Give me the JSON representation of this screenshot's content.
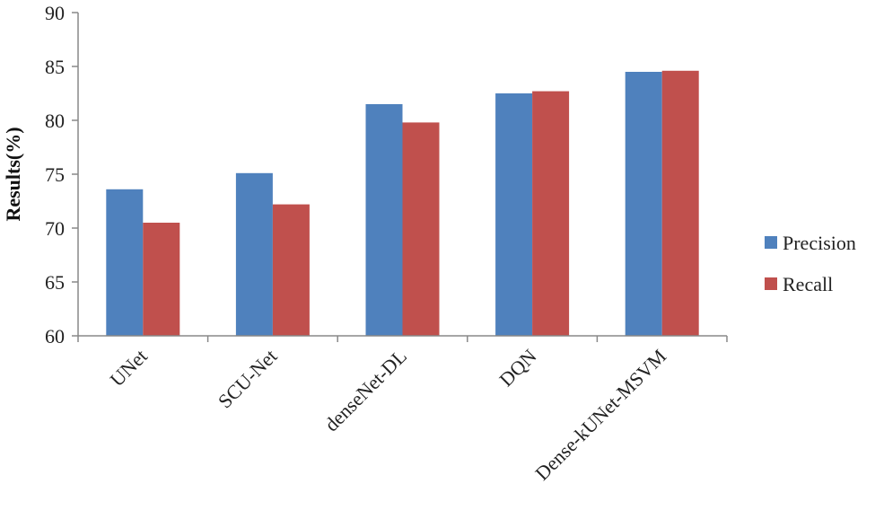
{
  "chart_data": {
    "type": "bar",
    "title": "",
    "xlabel": "",
    "ylabel": "Results(%)",
    "ylim": [
      60,
      90
    ],
    "yticks": [
      60,
      65,
      70,
      75,
      80,
      85,
      90
    ],
    "grid": false,
    "legend_position": "right",
    "categories": [
      "UNet",
      "SCU-Net",
      "denseNet-DL",
      "DQN",
      "Dense-kUNet-MSVM"
    ],
    "series": [
      {
        "name": "Precision",
        "color": "#4f81bd",
        "values": [
          73.6,
          75.1,
          81.5,
          82.5,
          84.5
        ]
      },
      {
        "name": "Recall",
        "color": "#c0504d",
        "values": [
          70.5,
          72.2,
          79.8,
          82.7,
          84.6
        ]
      }
    ]
  }
}
